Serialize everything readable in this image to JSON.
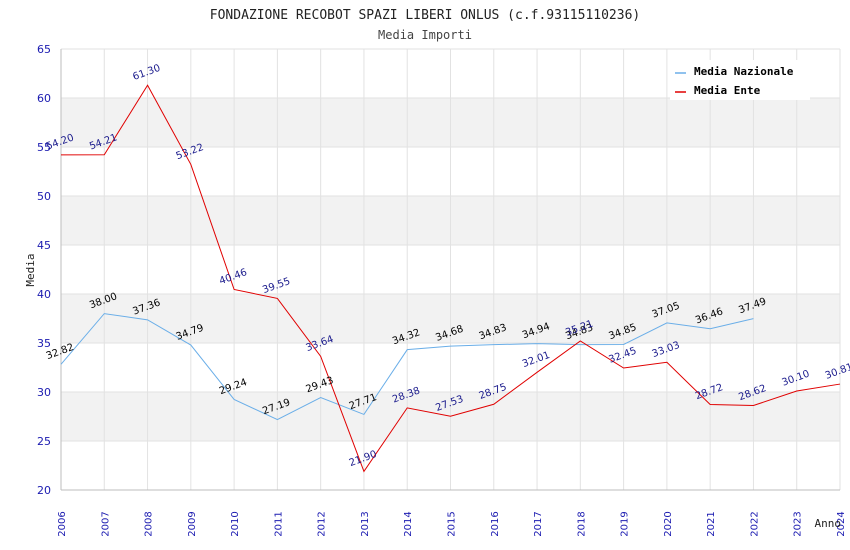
{
  "chart_data": {
    "type": "line",
    "title": "FONDAZIONE RECOBOT SPAZI LIBERI ONLUS (c.f.93115110236)",
    "subtitle": "Media Importi",
    "xlabel": "Anno",
    "ylabel": "Media",
    "ylim": [
      20,
      65
    ],
    "yticks": [
      "20",
      "25",
      "30",
      "35",
      "40",
      "45",
      "50",
      "55",
      "60",
      "65"
    ],
    "categories": [
      "2006",
      "2007",
      "2008",
      "2009",
      "2010",
      "2011",
      "2012",
      "2013",
      "2014",
      "2015",
      "2016",
      "2017",
      "2018",
      "2019",
      "2020",
      "2021",
      "2022",
      "2023",
      "2024"
    ],
    "legend_position": "top-right",
    "grid": true,
    "series": [
      {
        "name": "Media Nazionale",
        "color": "#6aaee8",
        "values": [
          32.82,
          38.0,
          37.36,
          34.79,
          29.24,
          27.19,
          29.43,
          27.71,
          34.32,
          34.68,
          34.83,
          34.94,
          34.83,
          34.85,
          37.05,
          36.46,
          37.49,
          null,
          null
        ],
        "labels": [
          "32.82",
          "38.00",
          "37.36",
          "34.79",
          "29.24",
          "27.19",
          "29.43",
          "27.71",
          "34.32",
          "34.68",
          "34.83",
          "34.94",
          "34.83",
          "34.85",
          "37.05",
          "36.46",
          "37.49",
          null,
          null
        ]
      },
      {
        "name": "Media Ente",
        "color": "#e00000",
        "values": [
          54.2,
          54.21,
          61.3,
          53.22,
          40.46,
          39.55,
          33.64,
          21.9,
          28.38,
          27.53,
          28.75,
          32.01,
          35.21,
          32.45,
          33.03,
          28.72,
          28.62,
          30.1,
          30.81
        ],
        "labels": [
          "54.20",
          "54.21",
          "61.30",
          "53.22",
          "40.46",
          "39.55",
          "33.64",
          "21.90",
          "28.38",
          "27.53",
          "28.75",
          "32.01",
          "35.21",
          "32.45",
          "33.03",
          "28.72",
          "28.62",
          "30.10",
          "30.81"
        ]
      }
    ]
  }
}
